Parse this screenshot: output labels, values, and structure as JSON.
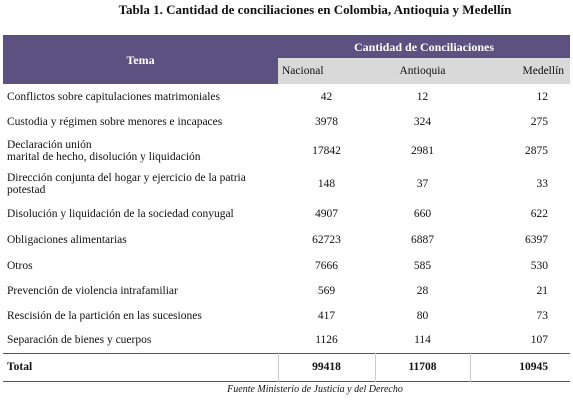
{
  "title": "Tabla 1.  Cantidad de conciliaciones en Colombia, Antioquia y Medellín",
  "table": {
    "header": {
      "topic": "Tema",
      "group": "Cantidad de Conciliaciones",
      "columns": [
        "Nacional",
        "Antioquia",
        "Medellín"
      ]
    },
    "rows": [
      [
        "Conflictos sobre capitulaciones matrimoniales",
        42,
        12,
        12
      ],
      [
        "Custodia y régimen sobre menores e incapaces",
        3978,
        324,
        275
      ],
      [
        "Declaración unión\nmarital de hecho, disolución y liquidación",
        17842,
        2981,
        2875
      ],
      [
        "Dirección conjunta del hogar y ejercicio de la patria potestad",
        148,
        37,
        33
      ],
      [
        "Disolución y liquidación de la sociedad conyugal",
        4907,
        660,
        622
      ],
      [
        "Obligaciones alimentarias",
        62723,
        6887,
        6397
      ],
      [
        "Otros",
        7666,
        585,
        530
      ],
      [
        "Prevención de violencia intrafamiliar",
        569,
        28,
        21
      ],
      [
        "Rescisión de la partición en las sucesiones",
        417,
        80,
        73
      ],
      [
        "Separación de bienes y cuerpos",
        1126,
        114,
        107
      ]
    ],
    "total": [
      "Total",
      99418,
      11708,
      10945
    ]
  },
  "source": "Fuente Ministerio de Justicia y del Derecho"
}
